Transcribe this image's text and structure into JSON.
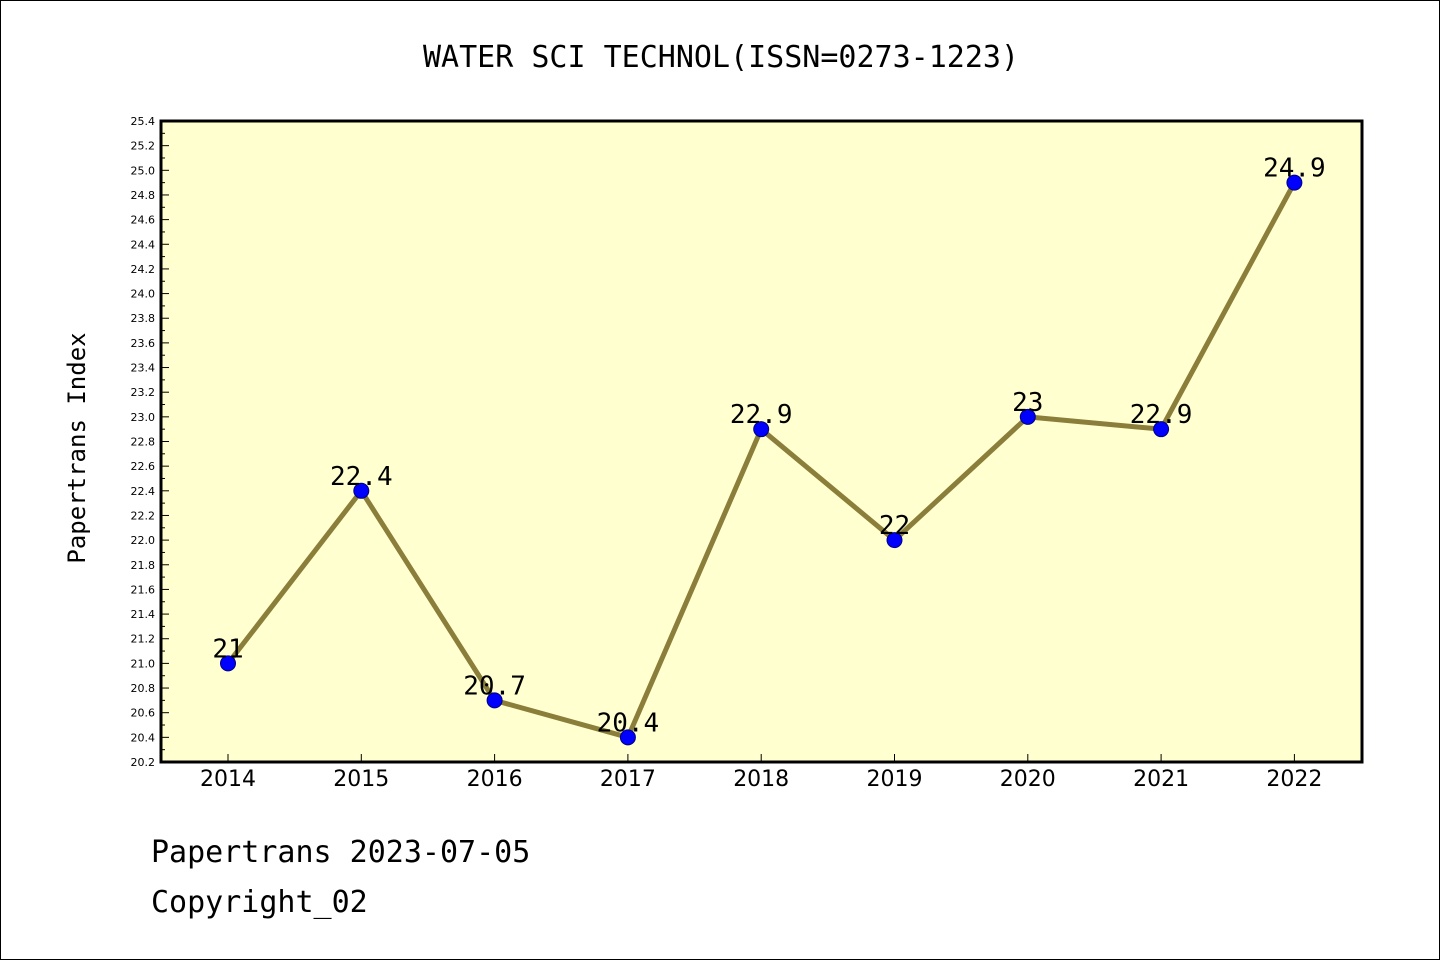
{
  "chart_data": {
    "type": "line",
    "title": "WATER SCI TECHNOL(ISSN=0273-1223)",
    "xlabel": "",
    "ylabel": "Papertrans Index",
    "categories": [
      "2014",
      "2015",
      "2016",
      "2017",
      "2018",
      "2019",
      "2020",
      "2021",
      "2022"
    ],
    "series": [
      {
        "values": [
          21,
          22.4,
          20.7,
          20.4,
          22.9,
          22,
          23,
          22.9,
          24.9
        ],
        "data_labels": [
          "21",
          "22.4",
          "20.7",
          "20.4",
          "22.9",
          "22",
          "23",
          "22.9",
          "24.9"
        ]
      }
    ],
    "ylim": [
      20.2,
      25.4
    ],
    "yticks": [
      "20.2",
      "20.4",
      "20.6",
      "20.8",
      "21.0",
      "21.2",
      "21.4",
      "21.6",
      "21.8",
      "22.0",
      "22.2",
      "22.4",
      "22.6",
      "22.8",
      "23.0",
      "23.2",
      "23.4",
      "23.6",
      "23.8",
      "24.0",
      "24.2",
      "24.4",
      "24.6",
      "24.8",
      "25.0",
      "25.2",
      "25.4"
    ],
    "grid": false,
    "legend": "none",
    "colors": {
      "plot_background": "#ffffd0",
      "line": "#8b7d3a",
      "marker": "#0000ff",
      "marker_edge": "#000080"
    }
  },
  "footer": {
    "line1": "Papertrans 2023-07-05",
    "line2": "Copyright_02"
  }
}
